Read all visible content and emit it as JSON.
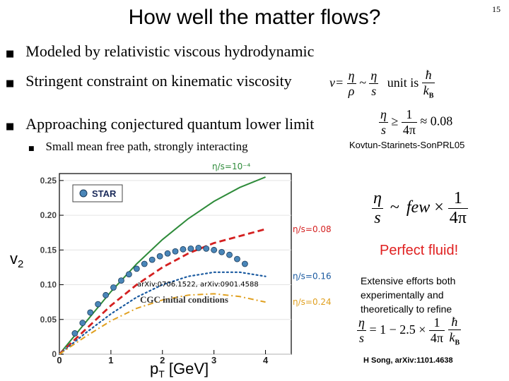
{
  "slide": {
    "title": "How well the matter flows?",
    "page_number": "15"
  },
  "bullets": [
    {
      "text": "Modeled by relativistic viscous hydrodynamic"
    },
    {
      "text": "Stringent constraint on kinematic viscosity"
    },
    {
      "text": "Approaching conjectured quantum lower limit"
    }
  ],
  "sub_bullets": [
    {
      "text": "Small mean free path, strongly interacting"
    }
  ],
  "formulas": {
    "nu_prefix": "ν=",
    "eta": "η",
    "rho": "ρ",
    "s": "s",
    "sim": "~",
    "unit_is": "unit is",
    "hbar": "ħ",
    "kB": "k",
    "kB_sub": "B",
    "geq": "≥",
    "one": "1",
    "four_pi": "4π",
    "approx": "≈ 0.08",
    "few": "few",
    "times": "×",
    "song_expr": "= 1 − 2.5 ×"
  },
  "citations": {
    "kovtun": "Kovtun-Starinets-SonPRL05",
    "song": "H Song, arXiv:1101.4638",
    "arxiv_plot": "arXiv:0706.1522, arXiv:0901.4588"
  },
  "side_text": {
    "perfect_fluid": "Perfect fluid!",
    "extensive": "Extensive efforts both experimentally and theoretically to refine"
  },
  "chart_data": {
    "type": "line",
    "title": "",
    "xlabel": "pT [GeV]",
    "xlabel_main": "p",
    "xlabel_sub": "T",
    "xlabel_unit": " [GeV]",
    "ylabel": "v2",
    "ylabel_main": "v",
    "ylabel_sub": "2",
    "xlim": [
      0,
      4.5
    ],
    "ylim": [
      0,
      0.26
    ],
    "xticks": [
      0,
      1,
      2,
      3,
      4
    ],
    "yticks": [
      0,
      0.05,
      0.1,
      0.15,
      0.2,
      0.25
    ],
    "ytick_labels": [
      "0",
      "0.05",
      "0.10",
      "0.15",
      "0.20",
      "0.25"
    ],
    "legend": "STAR",
    "annotation": "CGC initial conditions",
    "series_colors": [
      "#2e8b3a",
      "#d42020",
      "#1a5aa0",
      "#e0a020"
    ],
    "point_color": "#4a86b8",
    "series": [
      {
        "name": "η/s=10⁻⁴",
        "x": [
          0,
          0.5,
          1,
          1.5,
          2,
          2.5,
          3,
          3.5,
          4
        ],
        "y": [
          0,
          0.045,
          0.09,
          0.13,
          0.165,
          0.195,
          0.22,
          0.24,
          0.255
        ],
        "style": "solid"
      },
      {
        "name": "η/s=0.08",
        "x": [
          0,
          0.5,
          1,
          1.5,
          2,
          2.5,
          3,
          3.5,
          4
        ],
        "y": [
          0,
          0.035,
          0.07,
          0.1,
          0.125,
          0.145,
          0.16,
          0.17,
          0.18
        ],
        "style": "dash"
      },
      {
        "name": "η/s=0.16",
        "x": [
          0,
          0.5,
          1,
          1.5,
          2,
          2.5,
          3,
          3.5,
          4
        ],
        "y": [
          0,
          0.03,
          0.058,
          0.082,
          0.1,
          0.112,
          0.118,
          0.118,
          0.112
        ],
        "style": "dot"
      },
      {
        "name": "η/s=0.24",
        "x": [
          0,
          0.5,
          1,
          1.5,
          2,
          2.5,
          3,
          3.5,
          4
        ],
        "y": [
          0,
          0.025,
          0.048,
          0.066,
          0.078,
          0.085,
          0.087,
          0.083,
          0.075
        ],
        "style": "dashdot"
      }
    ],
    "points": {
      "name": "STAR",
      "x": [
        0.3,
        0.45,
        0.6,
        0.75,
        0.9,
        1.05,
        1.2,
        1.35,
        1.5,
        1.65,
        1.8,
        1.95,
        2.1,
        2.25,
        2.4,
        2.55,
        2.7,
        2.85,
        3.0,
        3.15,
        3.3,
        3.45,
        3.6
      ],
      "y": [
        0.03,
        0.045,
        0.06,
        0.072,
        0.085,
        0.096,
        0.106,
        0.115,
        0.123,
        0.13,
        0.136,
        0.141,
        0.145,
        0.148,
        0.151,
        0.152,
        0.153,
        0.152,
        0.15,
        0.147,
        0.143,
        0.137,
        0.13
      ]
    }
  }
}
